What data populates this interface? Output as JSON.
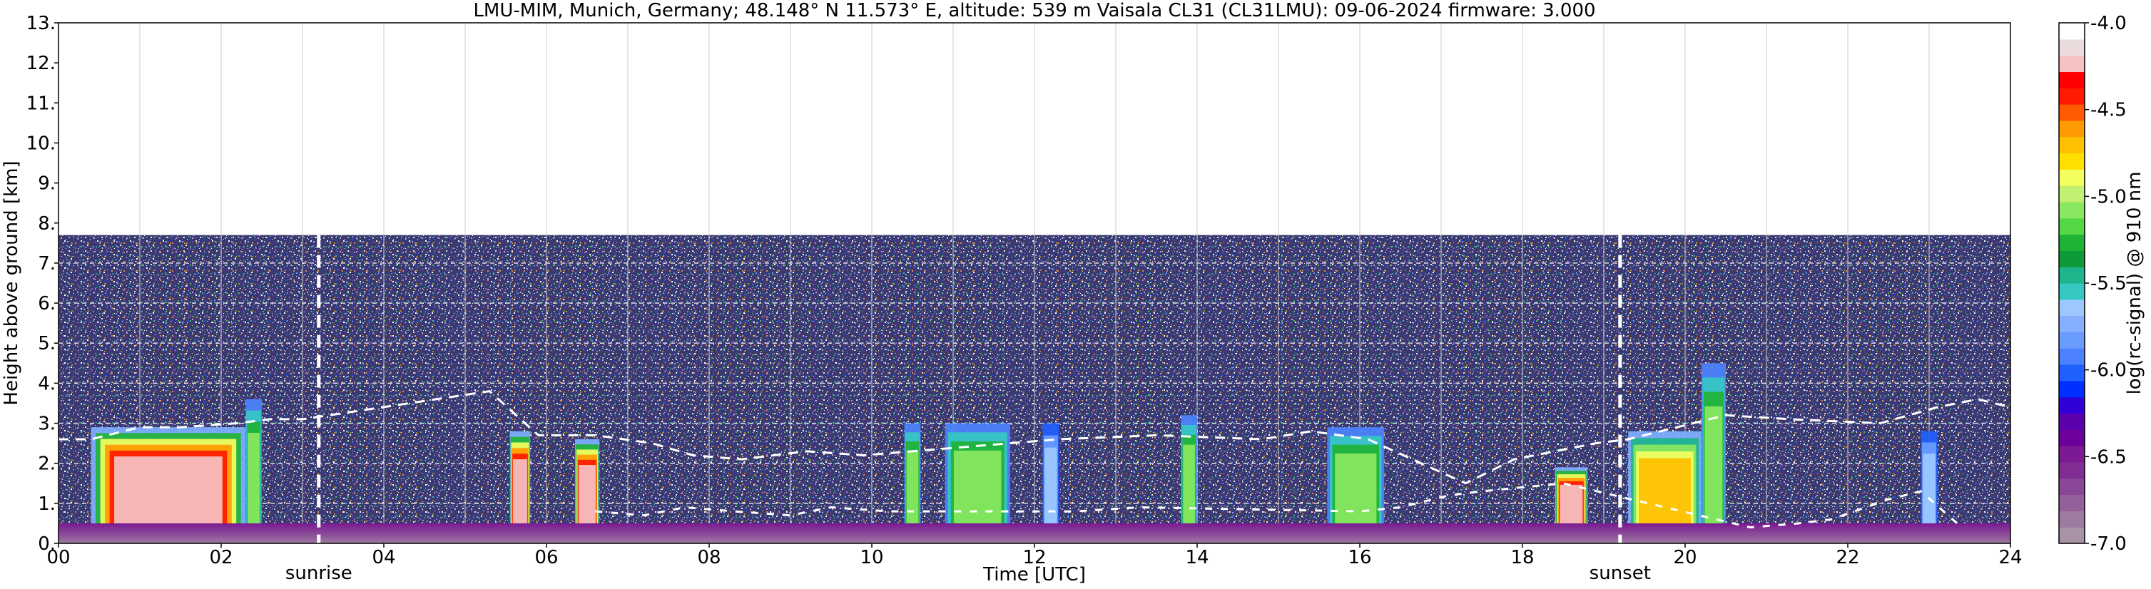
{
  "chart_data": {
    "type": "heatmap",
    "title": "LMU-MIM, Munich, Germany; 48.148° N 11.573° E, altitude: 539 m    Vaisala CL31 (CL31LMU): 09-06-2024    firmware: 3.000",
    "xlabel": "Time [UTC]",
    "ylabel": "Height above ground [km]",
    "xlim": [
      0,
      24
    ],
    "ylim": [
      0,
      13
    ],
    "x_ticks": [
      "00",
      "02",
      "04",
      "06",
      "08",
      "10",
      "12",
      "14",
      "16",
      "18",
      "20",
      "22",
      "24"
    ],
    "y_ticks": [
      "0.",
      "1.",
      "2.",
      "3.",
      "4.",
      "5.",
      "6.",
      "7.",
      "8.",
      "9.",
      "10.",
      "11.",
      "12.",
      "13."
    ],
    "grid": true,
    "data_top_km": 7.7,
    "markers": [
      {
        "label": "sunrise",
        "time": 3.2
      },
      {
        "label": "sunset",
        "time": 19.2
      }
    ],
    "colorbar": {
      "label": "log(rc-signal) @ 910 nm",
      "range": [
        -7.0,
        -4.0
      ],
      "ticks": [
        "-4.0",
        "-4.5",
        "-5.0",
        "-5.5",
        "-6.0",
        "-6.5",
        "-7.0"
      ],
      "colors": [
        "#a892a5",
        "#9d7ba0",
        "#94609c",
        "#8a4798",
        "#802d94",
        "#7b1a92",
        "#6d009a",
        "#5a00ad",
        "#3000d6",
        "#0030ff",
        "#2060ff",
        "#4c82ff",
        "#6a9cff",
        "#86b0ff",
        "#9cc8ff",
        "#35c8c2",
        "#1db58c",
        "#0f9a3a",
        "#1fb335",
        "#55d845",
        "#8ae860",
        "#c2f070",
        "#f4ff60",
        "#ffe000",
        "#ffc000",
        "#ff9a00",
        "#ff5a00",
        "#ff1a00",
        "#ff0000",
        "#f5c2c4",
        "#eadcdd",
        "#ffffff"
      ]
    },
    "cloud_base": [
      [
        0.0,
        2.6
      ],
      [
        0.4,
        2.6
      ],
      [
        1.0,
        2.9
      ],
      [
        1.5,
        2.9
      ],
      [
        2.2,
        3.0
      ],
      [
        2.6,
        3.1
      ],
      [
        3.0,
        3.1
      ],
      [
        5.3,
        3.8
      ],
      [
        5.9,
        2.7
      ],
      [
        6.6,
        2.7
      ],
      [
        7.3,
        2.5
      ],
      [
        7.8,
        2.2
      ],
      [
        8.4,
        2.1
      ],
      [
        9.2,
        2.3
      ],
      [
        9.9,
        2.2
      ],
      [
        11.1,
        2.4
      ],
      [
        12.3,
        2.6
      ],
      [
        13.5,
        2.7
      ],
      [
        14.8,
        2.6
      ],
      [
        15.4,
        2.8
      ],
      [
        16.1,
        2.6
      ],
      [
        17.3,
        1.5
      ],
      [
        17.9,
        2.1
      ],
      [
        18.4,
        2.3
      ],
      [
        18.9,
        2.5
      ],
      [
        19.3,
        2.6
      ],
      [
        20.5,
        3.2
      ],
      [
        21.3,
        3.1
      ],
      [
        22.4,
        3.0
      ],
      [
        23.1,
        3.4
      ],
      [
        23.6,
        3.6
      ],
      [
        24.0,
        3.4
      ]
    ],
    "low_cloud": [
      [
        6.6,
        0.8
      ],
      [
        7.2,
        0.7
      ],
      [
        7.7,
        0.9
      ],
      [
        8.3,
        0.8
      ],
      [
        9.0,
        0.7
      ],
      [
        9.5,
        0.9
      ],
      [
        10.2,
        0.8
      ],
      [
        12.5,
        0.8
      ],
      [
        13.3,
        0.9
      ],
      [
        16.0,
        0.8
      ],
      [
        16.5,
        0.9
      ],
      [
        17.1,
        1.2
      ],
      [
        17.5,
        1.3
      ],
      [
        18.0,
        1.4
      ],
      [
        18.5,
        1.5
      ],
      [
        20.8,
        0.4
      ],
      [
        21.4,
        0.5
      ],
      [
        21.8,
        0.6
      ],
      [
        22.5,
        1.1
      ],
      [
        22.9,
        1.3
      ],
      [
        23.4,
        0.4
      ]
    ],
    "rain_shafts": [
      {
        "t0": 0.4,
        "t1": 2.3,
        "top": 2.9,
        "peak": "red"
      },
      {
        "t0": 2.3,
        "t1": 2.5,
        "top": 3.6,
        "peak": "green"
      },
      {
        "t0": 5.55,
        "t1": 5.8,
        "top": 2.8,
        "peak": "red"
      },
      {
        "t0": 6.35,
        "t1": 6.65,
        "top": 2.6,
        "peak": "red"
      },
      {
        "t0": 10.4,
        "t1": 10.6,
        "top": 3.0,
        "peak": "green"
      },
      {
        "t0": 10.9,
        "t1": 11.7,
        "top": 3.0,
        "peak": "green"
      },
      {
        "t0": 12.1,
        "t1": 12.3,
        "top": 3.0,
        "peak": "blue"
      },
      {
        "t0": 13.8,
        "t1": 14.0,
        "top": 3.2,
        "peak": "green"
      },
      {
        "t0": 15.6,
        "t1": 16.3,
        "top": 2.9,
        "peak": "green"
      },
      {
        "t0": 18.4,
        "t1": 18.8,
        "top": 1.9,
        "peak": "red"
      },
      {
        "t0": 19.3,
        "t1": 20.2,
        "top": 2.8,
        "peak": "yellow"
      },
      {
        "t0": 20.2,
        "t1": 20.5,
        "top": 4.5,
        "peak": "green"
      },
      {
        "t0": 22.9,
        "t1": 23.1,
        "top": 2.8,
        "peak": "blue"
      }
    ],
    "aerosol_layer_top_km": 0.5
  }
}
